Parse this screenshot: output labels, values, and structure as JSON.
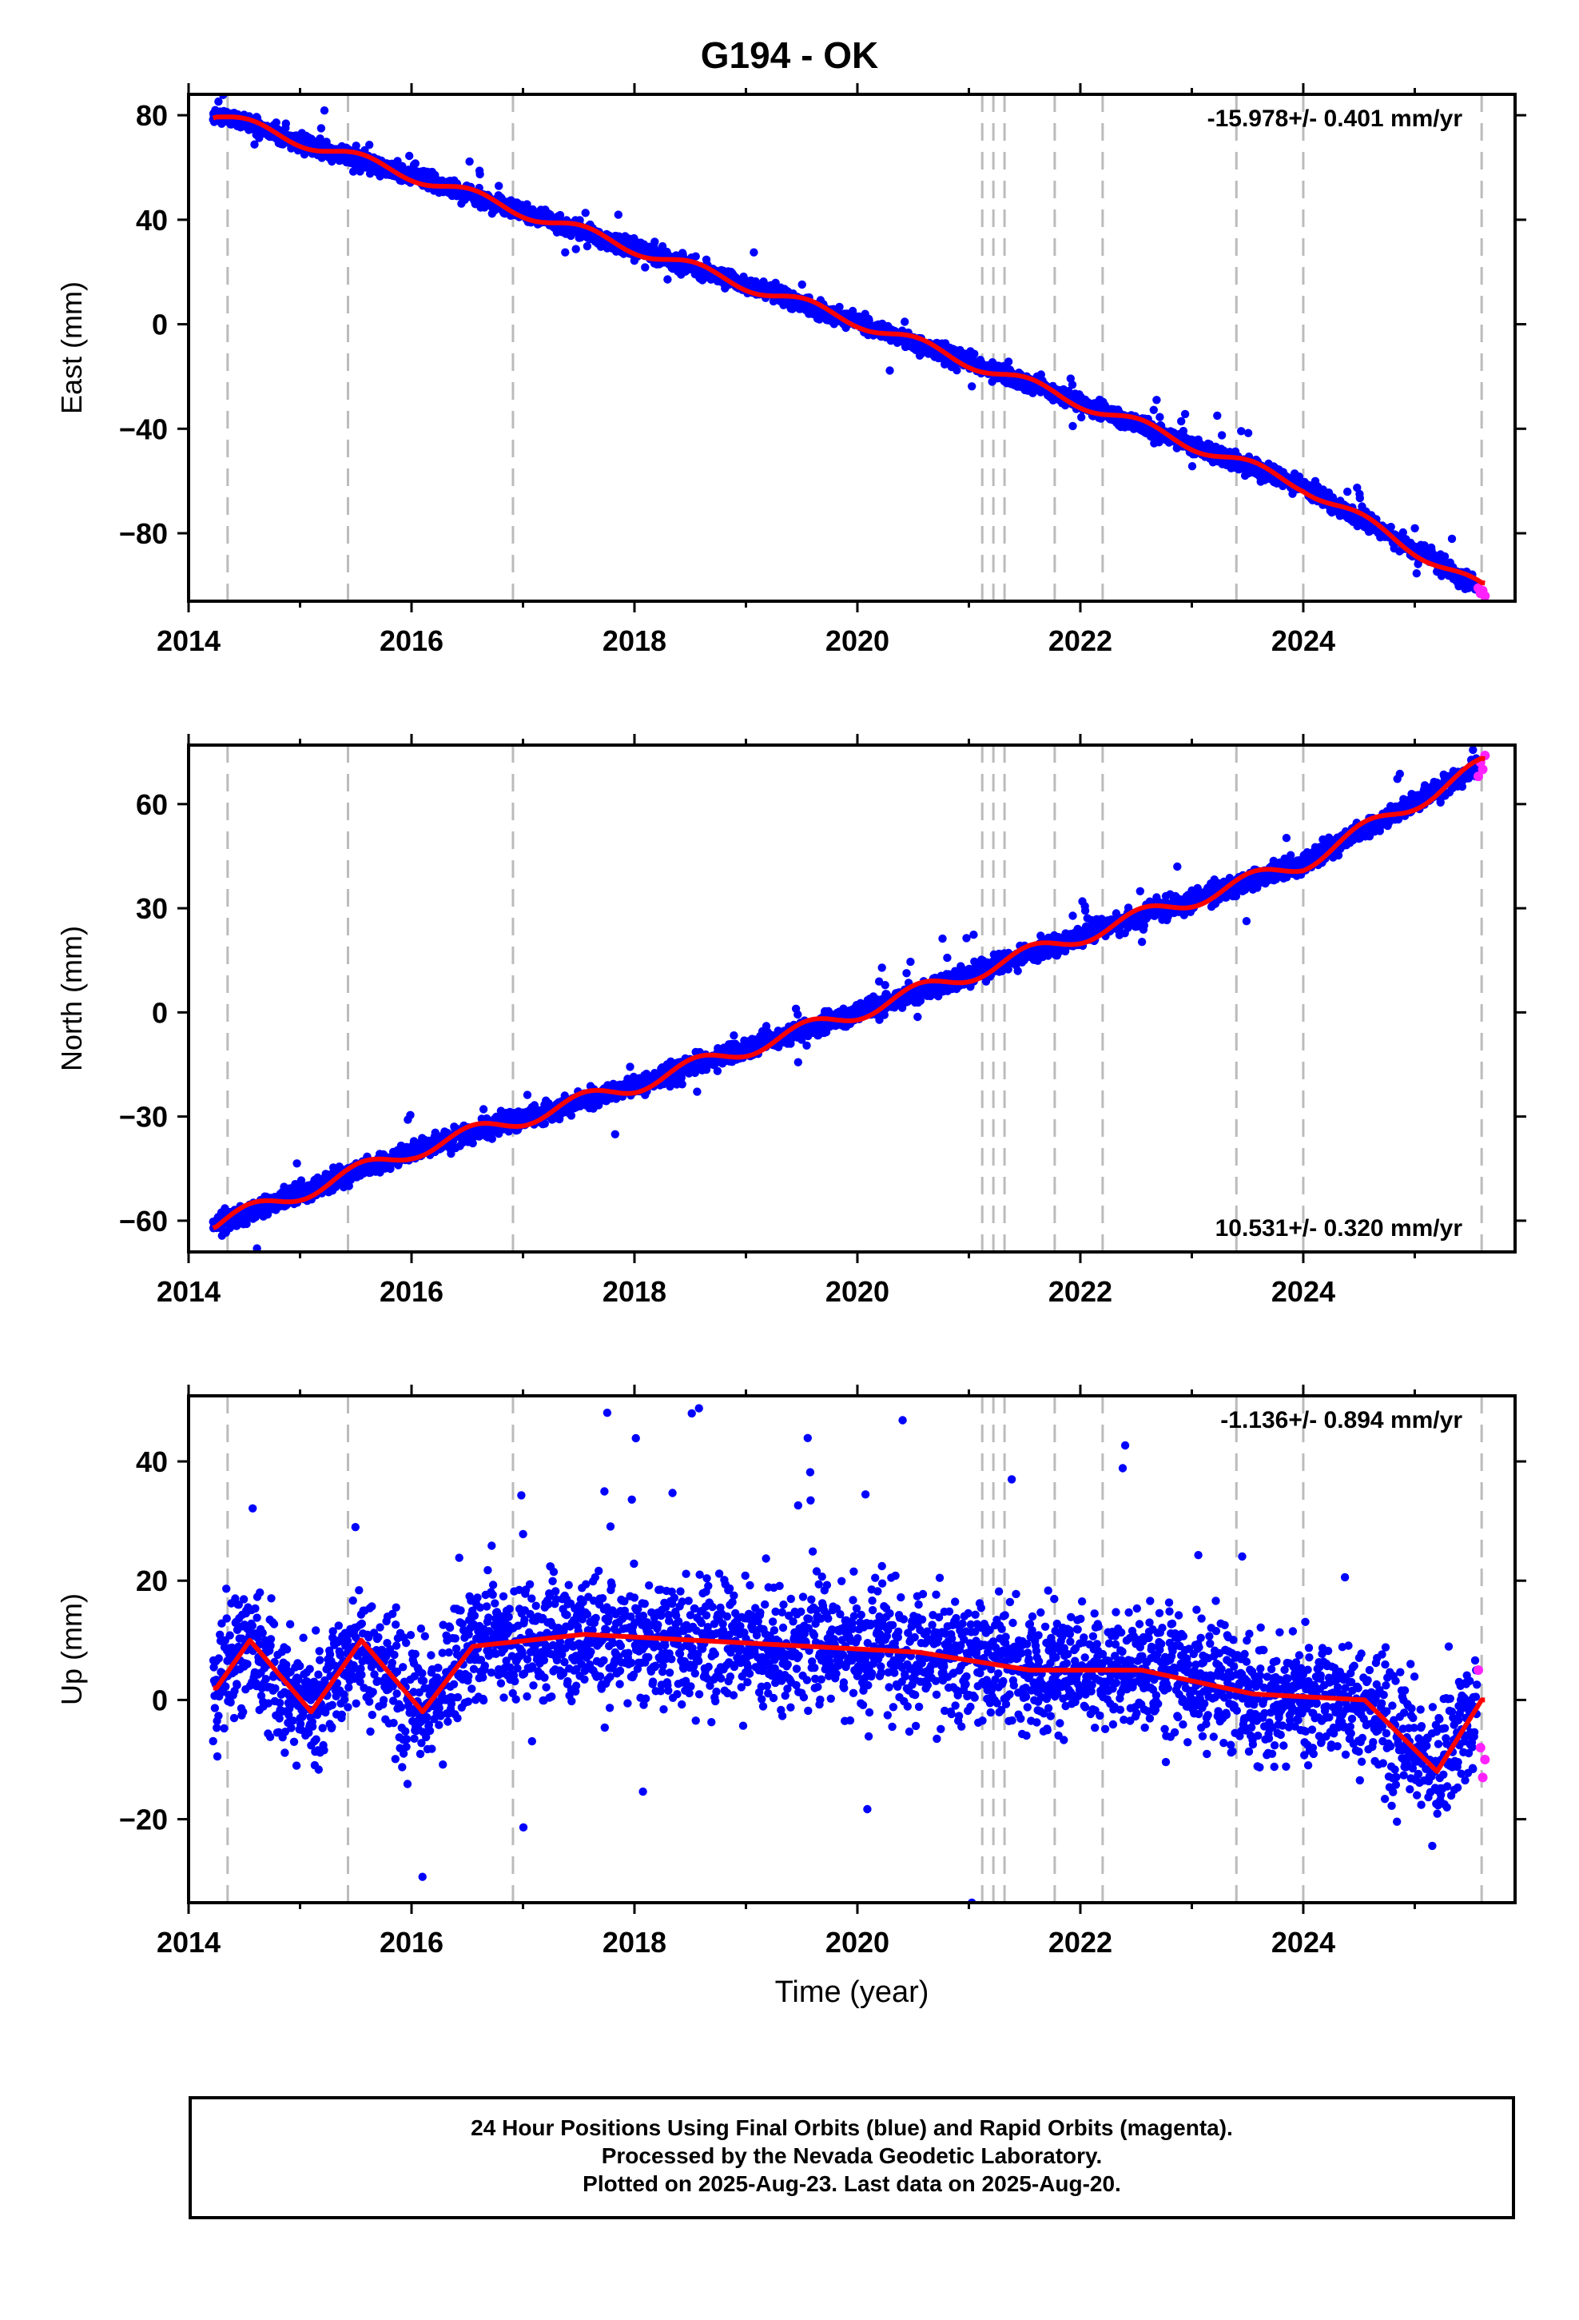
{
  "title": "G194 - OK",
  "colors": {
    "final": "#0000ff",
    "rapid": "#ff22ff",
    "model": "#ff0000",
    "steps": "#bbbbbb"
  },
  "footer": [
    "24 Hour Positions Using Final Orbits (blue) and Rapid Orbits (magenta).",
    "Processed by the Nevada Geodetic Laboratory.",
    "Plotted on 2025-Aug-23. Last data on 2025-Aug-20."
  ],
  "chart_data": [
    {
      "type": "scatter",
      "ylabel": "East (mm)",
      "xlim": [
        2014.0,
        2025.9
      ],
      "ylim": [
        -106,
        88
      ],
      "xticks": [
        2014,
        2016,
        2018,
        2020,
        2022,
        2024
      ],
      "xticklabels": [
        "2014",
        "2016",
        "2018",
        "2020",
        "2022",
        "2024"
      ],
      "yticks": [
        80,
        40,
        0,
        -40,
        -80
      ],
      "yticklabels": [
        "80",
        "40",
        "0",
        "−40",
        "−80"
      ],
      "annotation": "-15.978+/- 0.401 mm/yr",
      "annotation_position": "top-right",
      "steps": [
        2014.35,
        2015.43,
        2016.91,
        2021.12,
        2021.22,
        2021.32,
        2021.77,
        2022.2,
        2023.4,
        2024.0,
        2025.6
      ],
      "rate": -15.978,
      "offset": 80,
      "seasonal_amp": 2.2,
      "noise": 1.6,
      "range": [
        2014.22,
        2025.63
      ],
      "series": [
        {
          "name": "Final Orbits",
          "type": "scatter",
          "x": [
            2014.25,
            2015.0,
            2016.0,
            2017.0,
            2018.0,
            2019.0,
            2020.0,
            2021.0,
            2022.0,
            2023.0,
            2024.0,
            2025.0,
            2025.55
          ],
          "y": [
            80,
            72,
            59,
            44,
            29,
            14,
            1,
            -15,
            -32,
            -48,
            -63,
            -87,
            -100
          ]
        },
        {
          "name": "Rapid Orbits",
          "type": "scatter",
          "x": [
            2025.57,
            2025.59,
            2025.61,
            2025.63
          ],
          "y": [
            -101,
            -103,
            -102,
            -104
          ]
        },
        {
          "name": "Model",
          "type": "line",
          "x": [
            2014.25,
            2016.0,
            2018.0,
            2020.0,
            2022.0,
            2024.0,
            2025.6
          ],
          "y": [
            80,
            57,
            29,
            1,
            -30,
            -62,
            -101
          ]
        }
      ]
    },
    {
      "type": "scatter",
      "ylabel": "North (mm)",
      "xlim": [
        2014.0,
        2025.9
      ],
      "ylim": [
        -69,
        77
      ],
      "xticks": [
        2014,
        2016,
        2018,
        2020,
        2022,
        2024
      ],
      "xticklabels": [
        "2014",
        "2016",
        "2018",
        "2020",
        "2022",
        "2024"
      ],
      "yticks": [
        60,
        30,
        0,
        -30,
        -60
      ],
      "yticklabels": [
        "60",
        "30",
        "0",
        "−30",
        "−60"
      ],
      "annotation": "10.531+/- 0.320 mm/yr",
      "annotation_position": "bottom-right",
      "steps": [
        2014.35,
        2015.43,
        2016.91,
        2021.12,
        2021.22,
        2021.32,
        2021.77,
        2022.2,
        2023.4,
        2024.0,
        2025.6
      ],
      "rate": 10.531,
      "offset": -60,
      "seasonal_amp": 2.3,
      "noise": 1.4,
      "range": [
        2014.22,
        2025.63
      ],
      "series": [
        {
          "name": "Final Orbits",
          "type": "scatter",
          "x": [
            2014.25,
            2015.0,
            2016.0,
            2017.0,
            2018.0,
            2019.0,
            2020.0,
            2021.0,
            2022.0,
            2023.0,
            2024.0,
            2025.0,
            2025.55
          ],
          "y": [
            -61,
            -52,
            -40,
            -30,
            -21,
            -11,
            0,
            10,
            22,
            33,
            43,
            62,
            70
          ]
        },
        {
          "name": "Rapid Orbits",
          "type": "scatter",
          "x": [
            2025.57,
            2025.59,
            2025.61,
            2025.63
          ],
          "y": [
            68,
            72,
            70,
            74
          ]
        },
        {
          "name": "Model",
          "type": "line",
          "x": [
            2014.25,
            2016.0,
            2018.0,
            2020.0,
            2022.0,
            2024.0,
            2025.6
          ],
          "y": [
            -61,
            -40,
            -21,
            0,
            22,
            43,
            71
          ]
        }
      ]
    },
    {
      "type": "scatter",
      "ylabel": "Up (mm)",
      "xlabel": "Time (year)",
      "xlim": [
        2014.0,
        2025.9
      ],
      "ylim": [
        -34,
        51
      ],
      "xticks": [
        2014,
        2016,
        2018,
        2020,
        2022,
        2024
      ],
      "xticklabels": [
        "2014",
        "2016",
        "2018",
        "2020",
        "2022",
        "2024"
      ],
      "yticks": [
        40,
        20,
        0,
        -20
      ],
      "yticklabels": [
        "40",
        "20",
        "0",
        "−20"
      ],
      "annotation": "-1.136+/- 0.894 mm/yr",
      "annotation_position": "top-right",
      "steps": [
        2014.35,
        2015.43,
        2016.91,
        2021.12,
        2021.22,
        2021.32,
        2021.77,
        2022.2,
        2023.4,
        2024.0,
        2025.6
      ],
      "rate": -1.136,
      "offset": 4,
      "seasonal_amp": 6.5,
      "noise": 5.0,
      "range": [
        2014.22,
        2025.63
      ],
      "series": [
        {
          "name": "Final Orbits",
          "type": "scatter",
          "x": [
            2014.55,
            2015.1,
            2015.55,
            2016.1,
            2016.55,
            2017.55,
            2018.55,
            2019.55,
            2020.55,
            2021.55,
            2022.55,
            2023.55,
            2024.55,
            2025.2
          ],
          "y": [
            10,
            -2,
            10,
            -2,
            9,
            11,
            10,
            9,
            8,
            5,
            5,
            1,
            0,
            -12
          ]
        },
        {
          "name": "Rapid Orbits",
          "type": "scatter",
          "x": [
            2025.57,
            2025.59,
            2025.61,
            2025.63
          ],
          "y": [
            5,
            -8,
            -13,
            -10
          ]
        },
        {
          "name": "Model",
          "type": "line",
          "x": [
            2014.25,
            2014.55,
            2015.1,
            2015.55,
            2016.1,
            2016.55,
            2017.55,
            2018.55,
            2019.55,
            2020.55,
            2021.55,
            2022.55,
            2023.55,
            2024.55,
            2025.2,
            2025.6
          ],
          "y": [
            2,
            10,
            -2,
            10,
            -2,
            9,
            11,
            10,
            9,
            8,
            5,
            5,
            1,
            0,
            -12,
            0
          ]
        }
      ]
    }
  ]
}
